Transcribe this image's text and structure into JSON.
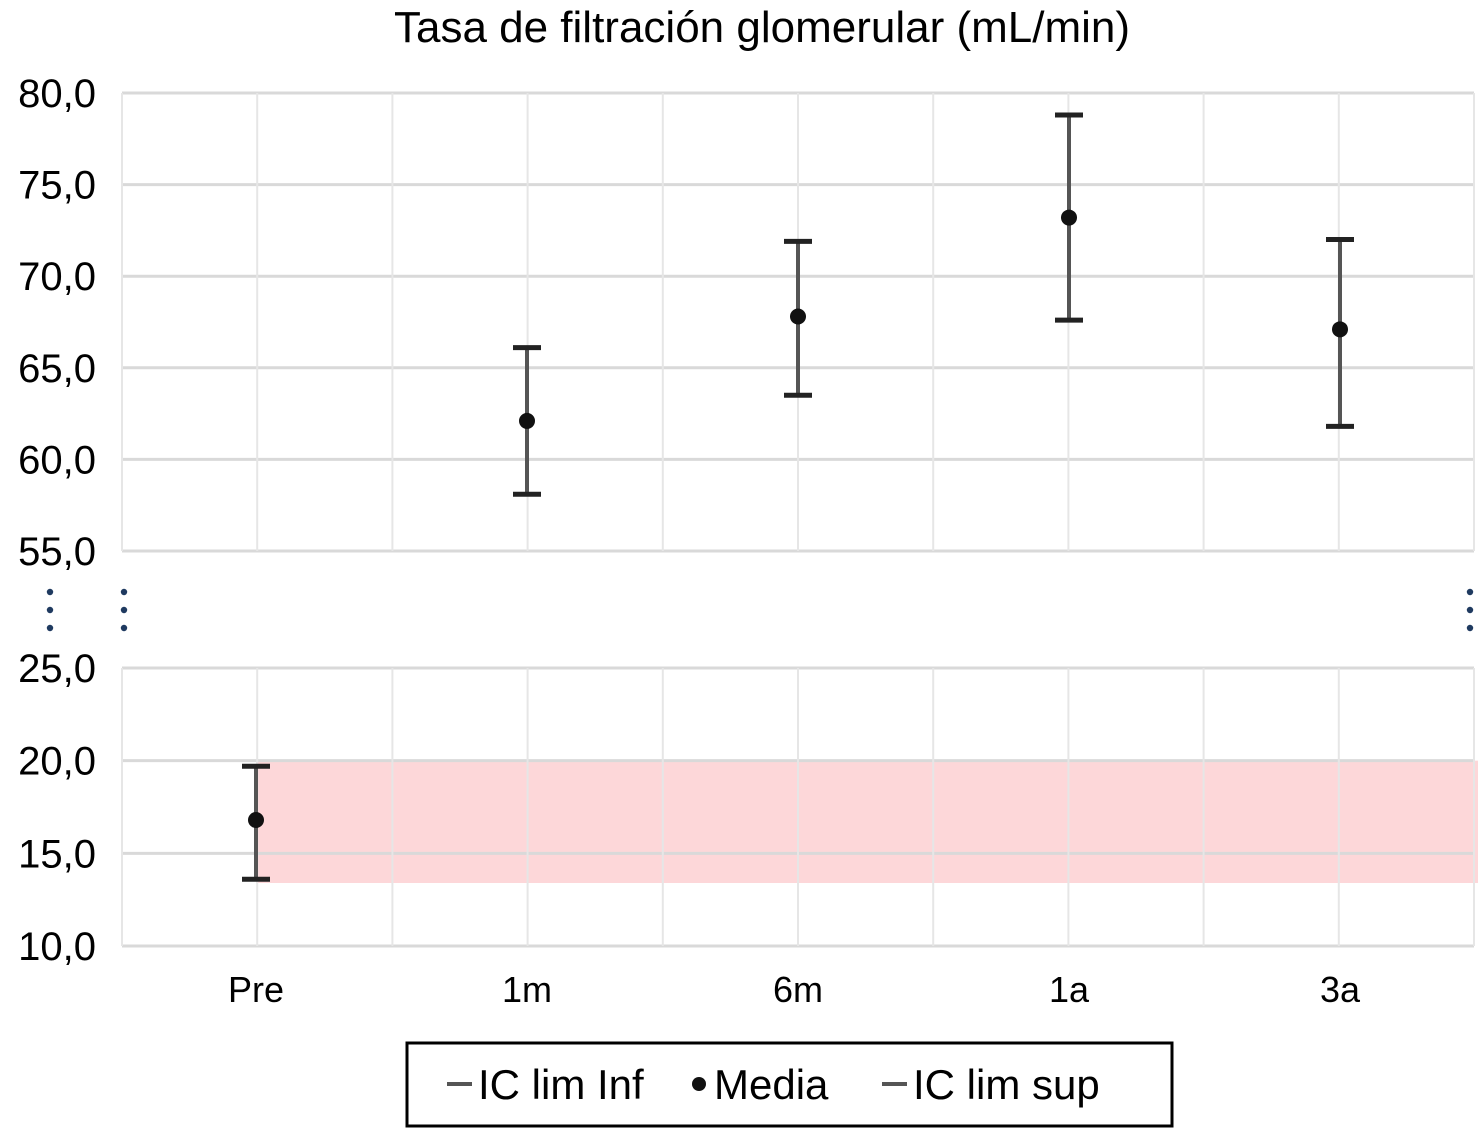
{
  "chart_data": {
    "type": "scatter",
    "title": "Tasa de filtración glomerular (mL/min)",
    "categories": [
      "Pre",
      "1m",
      "6m",
      "1a",
      "3a"
    ],
    "series": [
      {
        "name": "IC lim Inf",
        "values": [
          13.6,
          58.1,
          63.5,
          67.6,
          61.8
        ]
      },
      {
        "name": "Media",
        "values": [
          16.8,
          62.1,
          67.8,
          73.2,
          67.1
        ]
      },
      {
        "name": "IC lim sup",
        "values": [
          19.7,
          66.1,
          71.9,
          78.8,
          72.0
        ]
      }
    ],
    "y_axis": {
      "broken": true,
      "upper_segment": {
        "range": [
          55,
          80
        ],
        "ticks": [
          "80,0",
          "75,0",
          "70,0",
          "65,0",
          "60,0",
          "55,0"
        ]
      },
      "lower_segment": {
        "range": [
          10,
          25
        ],
        "ticks": [
          "25,0",
          "20,0",
          "15,0",
          "10,0"
        ]
      }
    },
    "shaded_band": {
      "range": [
        13.4,
        20.0
      ],
      "color": "#fdd7d9"
    },
    "grid": true,
    "legend_position": "bottom",
    "colors": {
      "error_bar": "#555555",
      "marker": "#111111",
      "grid": "#d9d9d9",
      "break_dots": "#1f3a60"
    }
  }
}
